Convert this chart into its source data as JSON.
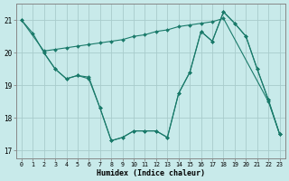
{
  "xlabel": "Humidex (Indice chaleur)",
  "bg_color": "#c8eaea",
  "grid_color": "#a8cccc",
  "line_color": "#1a7a6a",
  "xlim": [
    -0.5,
    23.5
  ],
  "ylim": [
    16.75,
    21.5
  ],
  "yticks": [
    17,
    18,
    19,
    20,
    21
  ],
  "xticks": [
    0,
    1,
    2,
    3,
    4,
    5,
    6,
    7,
    8,
    9,
    10,
    11,
    12,
    13,
    14,
    15,
    16,
    17,
    18,
    19,
    20,
    21,
    22,
    23
  ],
  "series": [
    {
      "x": [
        0,
        1,
        2,
        3,
        4,
        5,
        6,
        7,
        8,
        9,
        10,
        11,
        12,
        13,
        14,
        15,
        16,
        17,
        18,
        19,
        20,
        21,
        22,
        23
      ],
      "y": [
        21.0,
        20.6,
        20.0,
        19.5,
        19.2,
        19.3,
        19.2,
        18.3,
        17.3,
        17.4,
        17.6,
        17.6,
        17.6,
        17.4,
        18.75,
        19.4,
        20.65,
        20.35,
        21.25,
        20.9,
        20.5,
        19.5,
        18.55,
        17.5
      ]
    },
    {
      "x": [
        0,
        2,
        3,
        4,
        5,
        6,
        7,
        8,
        9,
        10,
        11,
        12,
        13,
        14,
        15,
        16,
        17,
        18,
        22,
        23
      ],
      "y": [
        21.0,
        20.05,
        20.1,
        20.15,
        20.2,
        20.25,
        20.3,
        20.35,
        20.4,
        20.5,
        20.55,
        20.65,
        20.7,
        20.8,
        20.85,
        20.9,
        20.95,
        21.05,
        18.5,
        17.5
      ]
    },
    {
      "x": [
        2,
        3,
        4,
        5,
        6,
        7,
        8,
        9,
        10,
        11,
        12,
        13,
        14,
        15,
        16,
        17,
        18,
        19,
        20,
        21,
        22,
        23
      ],
      "y": [
        20.0,
        19.5,
        19.2,
        19.3,
        19.25,
        18.3,
        17.3,
        17.4,
        17.6,
        17.6,
        17.6,
        17.4,
        18.75,
        19.4,
        20.65,
        20.35,
        21.25,
        20.9,
        20.5,
        19.5,
        18.55,
        17.5
      ]
    }
  ]
}
